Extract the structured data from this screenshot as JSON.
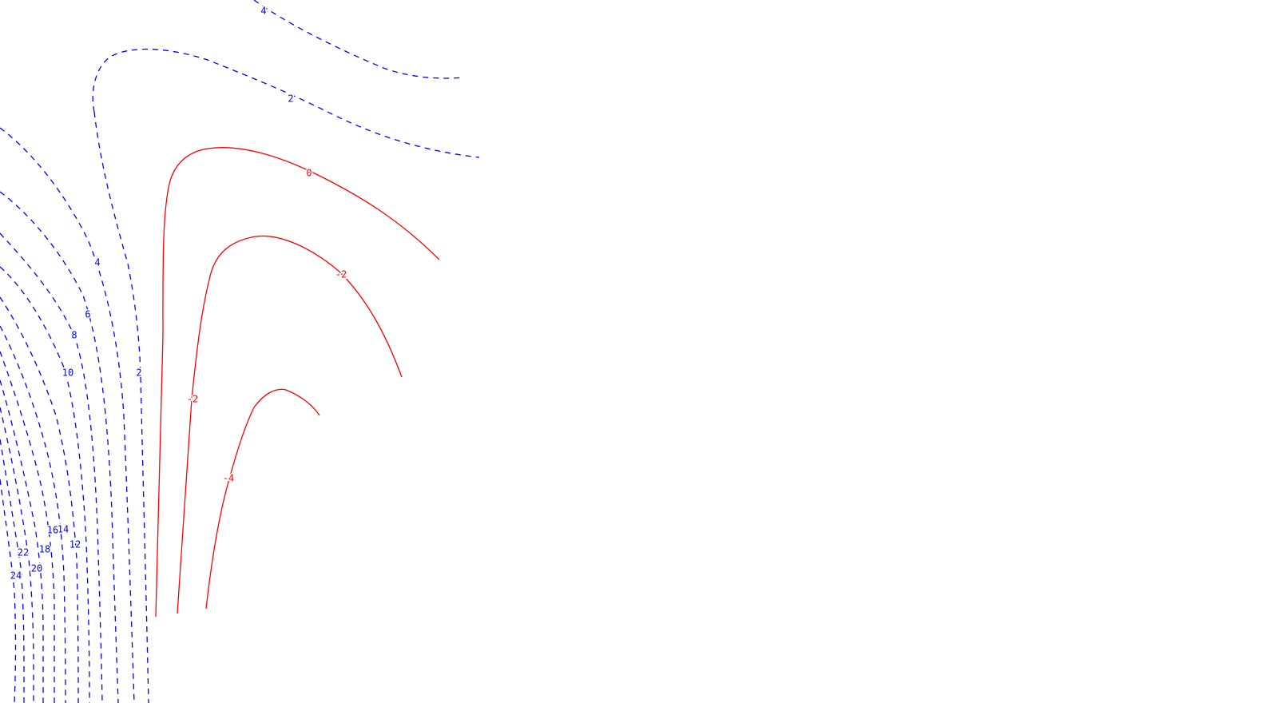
{
  "chart_data": {
    "type": "contour",
    "title": "",
    "xlabel": "",
    "ylabel": "",
    "grid": false,
    "legend": "none",
    "colors": {
      "dashed": "#0000ff",
      "solid": "#ff0000"
    },
    "levels": [
      {
        "id": "dashed-4-top",
        "style": "dashed",
        "value_label": "4"
      },
      {
        "id": "dashed-2-top",
        "style": "dashed",
        "value_label": "2"
      },
      {
        "id": "solid-0",
        "style": "solid",
        "value_label": "0"
      },
      {
        "id": "solid-2-upper",
        "style": "solid",
        "value_label": "-2"
      },
      {
        "id": "solid-2-lower",
        "style": "solid",
        "value_label": "-2"
      },
      {
        "id": "solid-4",
        "style": "solid",
        "value_label": "-4"
      },
      {
        "id": "dashed-2-left",
        "style": "dashed",
        "value_label": "2"
      },
      {
        "id": "dashed-4-left",
        "style": "dashed",
        "value_label": "4"
      },
      {
        "id": "dashed-6",
        "style": "dashed",
        "value_label": "6"
      },
      {
        "id": "dashed-8",
        "style": "dashed",
        "value_label": "8"
      },
      {
        "id": "dashed-10",
        "style": "dashed",
        "value_label": "10"
      },
      {
        "id": "dashed-12",
        "style": "dashed",
        "value_label": "12"
      },
      {
        "id": "dashed-14",
        "style": "dashed",
        "value_label": "14"
      },
      {
        "id": "dashed-16",
        "style": "dashed",
        "value_label": "16"
      },
      {
        "id": "dashed-18",
        "style": "dashed",
        "value_label": "18"
      },
      {
        "id": "dashed-20",
        "style": "dashed",
        "value_label": "20"
      },
      {
        "id": "dashed-22",
        "style": "dashed",
        "value_label": "22"
      },
      {
        "id": "dashed-24",
        "style": "dashed",
        "value_label": "24"
      }
    ]
  }
}
